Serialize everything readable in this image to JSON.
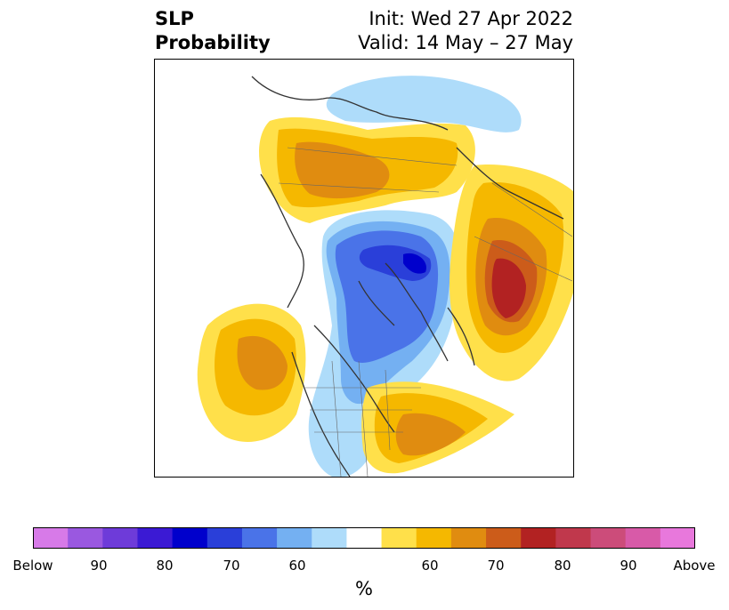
{
  "title": {
    "left": [
      "SLP",
      "Probability"
    ],
    "right": [
      "Init: Wed 27 Apr 2022",
      "Valid: 14 May – 27 May"
    ]
  },
  "colorbar": {
    "colors": [
      "#d77ae8",
      "#9a58e0",
      "#6e3bd9",
      "#3b1ad4",
      "#0000cc",
      "#2a3fd9",
      "#4a73e8",
      "#74b0f2",
      "#aedcfa",
      "#ffffff",
      "#ffe04a",
      "#f5b800",
      "#e08c10",
      "#cc5c1a",
      "#b22222",
      "#c0384c",
      "#cc4c7a",
      "#d85aa8",
      "#e878dc"
    ],
    "tick_labels": [
      "Below",
      "90",
      "80",
      "70",
      "60",
      "60",
      "70",
      "80",
      "90",
      "Above"
    ],
    "unit": "%"
  },
  "map": {
    "palette": {
      "below_60": "#aedcfa",
      "below_70": "#4a73e8",
      "below_80": "#2a3fd9",
      "above_60": "#ffe04a",
      "above_65": "#f5b800",
      "above_70": "#e08c10",
      "above_75": "#cc5c1a",
      "above_80": "#b22222"
    }
  }
}
